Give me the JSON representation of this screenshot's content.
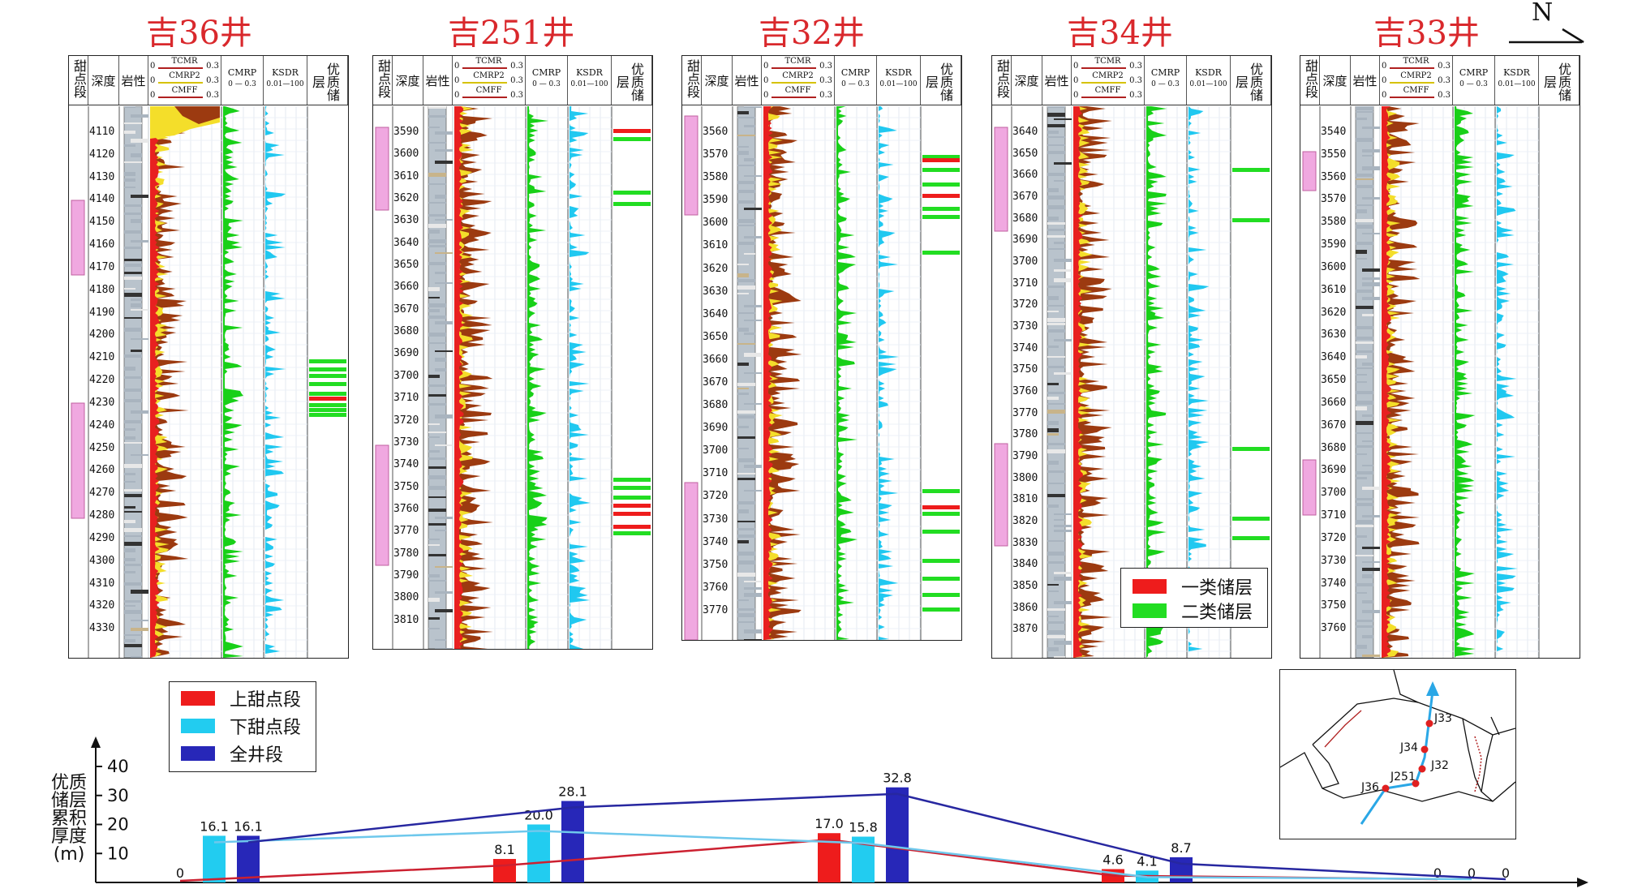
{
  "north": "N",
  "header": {
    "sweet": "甜点段",
    "depth": "深度",
    "litho": "岩性",
    "tcmr": "TCMR",
    "cmrp2": "CMRP2",
    "cmff": "CMFF",
    "cmrp": "CMRP",
    "ksdr": "KSDR",
    "quality": "优质储层",
    "min0": "0",
    "max03": "0.3",
    "kmin": "0.01",
    "kmax": "100"
  },
  "wells": [
    {
      "name": "吉36井",
      "depths": [
        "4110",
        "4120",
        "4130",
        "4140",
        "4150",
        "4160",
        "4170",
        "4180",
        "4190",
        "4200",
        "4210",
        "4220",
        "4230",
        "4240",
        "4250",
        "4260",
        "4270",
        "4280",
        "4290",
        "4300",
        "4310",
        "4320",
        "4330"
      ]
    },
    {
      "name": "吉251井",
      "depths": [
        "3590",
        "3600",
        "3610",
        "3620",
        "3630",
        "3640",
        "3650",
        "3660",
        "3670",
        "3680",
        "3690",
        "3700",
        "3710",
        "3720",
        "3730",
        "3740",
        "3750",
        "3760",
        "3770",
        "3780",
        "3790",
        "3800",
        "3810"
      ]
    },
    {
      "name": "吉32井",
      "depths": [
        "3560",
        "3570",
        "3580",
        "3590",
        "3600",
        "3610",
        "3620",
        "3630",
        "3640",
        "3650",
        "3660",
        "3670",
        "3680",
        "3690",
        "3700",
        "3710",
        "3720",
        "3730",
        "3740",
        "3750",
        "3760",
        "3770"
      ]
    },
    {
      "name": "吉34井",
      "depths": [
        "3640",
        "3650",
        "3660",
        "3670",
        "3680",
        "3690",
        "3700",
        "3710",
        "3720",
        "3730",
        "3740",
        "3750",
        "3760",
        "3770",
        "3780",
        "3790",
        "3800",
        "3810",
        "3820",
        "3830",
        "3840",
        "3850",
        "3860",
        "3870"
      ]
    },
    {
      "name": "吉33井",
      "depths": [
        "3540",
        "3550",
        "3560",
        "3570",
        "3580",
        "3590",
        "3600",
        "3610",
        "3620",
        "3630",
        "3640",
        "3650",
        "3660",
        "3670",
        "3680",
        "3690",
        "3700",
        "3710",
        "3720",
        "3730",
        "3740",
        "3750",
        "3760"
      ]
    }
  ],
  "reservoir_legend": [
    {
      "label": "一类储层",
      "color": "#ee1c1c"
    },
    {
      "label": "二类储层",
      "color": "#22dd22"
    }
  ],
  "map": {
    "labels": [
      "J33",
      "J34",
      "J32",
      "J251",
      "J36"
    ],
    "well_color": "#e02020",
    "line_color": "#2aa7e6"
  },
  "chart_data": {
    "type": "bar",
    "ylabel": "优质储层累积厚度(m)",
    "yticks": [
      "10",
      "20",
      "30",
      "40"
    ],
    "ylim": [
      0,
      40
    ],
    "groups": [
      {
        "well": "吉36",
        "values": [
          0,
          16.1,
          16.1
        ],
        "labels": [
          "0",
          "16.1",
          "16.1"
        ]
      },
      {
        "well": "吉251",
        "values": [
          8.1,
          20.0,
          28.1
        ],
        "labels": [
          "8.1",
          "20.0",
          "28.1"
        ]
      },
      {
        "well": "吉32",
        "values": [
          17.0,
          15.8,
          32.8
        ],
        "labels": [
          "17.0",
          "15.8",
          "32.8"
        ]
      },
      {
        "well": "吉34",
        "values": [
          4.6,
          4.1,
          8.7
        ],
        "labels": [
          "4.6",
          "4.1",
          "8.7"
        ]
      },
      {
        "well": "吉33",
        "values": [
          0,
          0,
          0
        ],
        "labels": [
          "0",
          "0",
          "0"
        ]
      }
    ],
    "series": [
      {
        "name": "上甜点段",
        "color": "#ee1c1c"
      },
      {
        "name": "下甜点段",
        "color": "#22ccf0"
      },
      {
        "name": "全井段",
        "color": "#2727b8"
      }
    ],
    "trend_lines": true,
    "legend_position": "top-left"
  }
}
